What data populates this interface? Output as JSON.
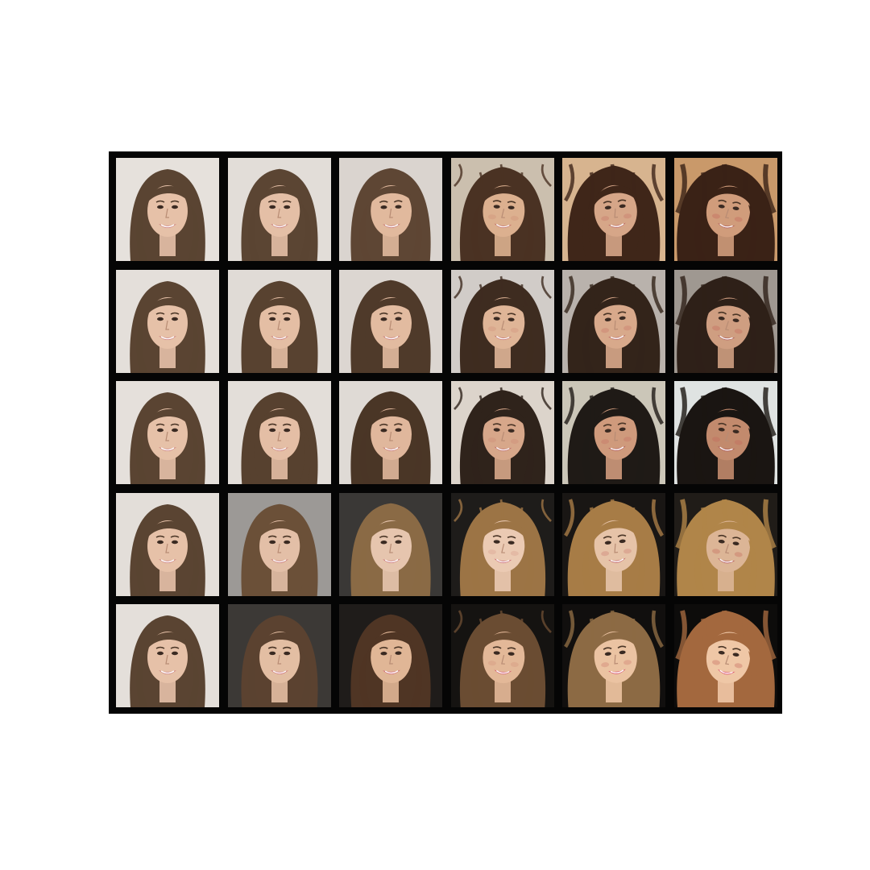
{
  "grid": {
    "rows": 5,
    "cols": 6,
    "frame_color": "#050505",
    "page_background": "#ffffff",
    "tiles": [
      [
        {
          "bg": "#e6e1dc",
          "hair": "#5a4432",
          "skin": "#e6c1a8",
          "lip": "#c9787a",
          "distortion": 0
        },
        {
          "bg": "#e2ddd8",
          "hair": "#5b4533",
          "skin": "#e4bfa6",
          "lip": "#c77678",
          "distortion": 0.05
        },
        {
          "bg": "#dad4cf",
          "hair": "#5e4634",
          "skin": "#e1b99d",
          "lip": "#c47072",
          "distortion": 0.2
        },
        {
          "bg": "#cbbfae",
          "hair": "#4a3223",
          "skin": "#dcb08f",
          "lip": "#c06a66",
          "distortion": 0.45
        },
        {
          "bg": "#d7b48f",
          "hair": "#3f2619",
          "skin": "#d6a688",
          "lip": "#b96464",
          "distortion": 0.75
        },
        {
          "bg": "#c9996a",
          "hair": "#3a2216",
          "skin": "#d09c7b",
          "lip": "#b05e5c",
          "distortion": 1
        }
      ],
      [
        {
          "bg": "#e4dfda",
          "hair": "#5a4432",
          "skin": "#e6c1a8",
          "lip": "#c9787a",
          "distortion": 0
        },
        {
          "bg": "#e0dbd6",
          "hair": "#584230",
          "skin": "#e4bea4",
          "lip": "#c77678",
          "distortion": 0.05
        },
        {
          "bg": "#dcd6d1",
          "hair": "#4f3a2a",
          "skin": "#e2bba0",
          "lip": "#c47274",
          "distortion": 0.2
        },
        {
          "bg": "#d1ccc8",
          "hair": "#3e2c20",
          "skin": "#dfb597",
          "lip": "#c06c6c",
          "distortion": 0.45
        },
        {
          "bg": "#b9b2ac",
          "hair": "#33241a",
          "skin": "#d8a98b",
          "lip": "#b86666",
          "distortion": 0.75
        },
        {
          "bg": "#9f9891",
          "hair": "#2e2018",
          "skin": "#cf9e81",
          "lip": "#ad5e5e",
          "distortion": 1
        }
      ],
      [
        {
          "bg": "#e5e0db",
          "hair": "#5a4432",
          "skin": "#e6c1a8",
          "lip": "#c9787a",
          "distortion": 0
        },
        {
          "bg": "#e3ded9",
          "hair": "#57412f",
          "skin": "#e4bea5",
          "lip": "#c77678",
          "distortion": 0.05
        },
        {
          "bg": "#dfdad5",
          "hair": "#4a3626",
          "skin": "#e0b79c",
          "lip": "#c47072",
          "distortion": 0.2
        },
        {
          "bg": "#dcd4cb",
          "hair": "#2f231b",
          "skin": "#d7a78a",
          "lip": "#bc6668",
          "distortion": 0.45
        },
        {
          "bg": "#cbc6b8",
          "hair": "#1f1a16",
          "skin": "#cf9a7c",
          "lip": "#b25c5e",
          "distortion": 0.75
        },
        {
          "bg": "#dfe3e2",
          "hair": "#1a1512",
          "skin": "#c28a6d",
          "lip": "#a95556",
          "distortion": 1
        }
      ],
      [
        {
          "bg": "#e3ded9",
          "hair": "#5a4432",
          "skin": "#e6c1a8",
          "lip": "#c9787a",
          "distortion": 0
        },
        {
          "bg": "#9c9996",
          "hair": "#6b5038",
          "skin": "#e3bfa7",
          "lip": "#c87577",
          "distortion": 0.05
        },
        {
          "bg": "#3a3836",
          "hair": "#8a6a45",
          "skin": "#e6c5ae",
          "lip": "#c86e74",
          "distortion": 0.2
        },
        {
          "bg": "#1e1c1a",
          "hair": "#9c7445",
          "skin": "#ebcab3",
          "lip": "#c6606c",
          "distortion": 0.45
        },
        {
          "bg": "#191614",
          "hair": "#a77c46",
          "skin": "#e6c3a8",
          "lip": "#bf5e66",
          "distortion": 0.75
        },
        {
          "bg": "#201c18",
          "hair": "#b08549",
          "skin": "#dcb596",
          "lip": "#b65a60",
          "distortion": 1
        }
      ],
      [
        {
          "bg": "#e4dfda",
          "hair": "#5a4432",
          "skin": "#e6c1a8",
          "lip": "#c9787a",
          "distortion": 0
        },
        {
          "bg": "#3c3936",
          "hair": "#5b4230",
          "skin": "#e3bea3",
          "lip": "#cc6f7a",
          "distortion": 0.05
        },
        {
          "bg": "#1f1c1a",
          "hair": "#4f3524",
          "skin": "#e0b696",
          "lip": "#cf5f74",
          "distortion": 0.2
        },
        {
          "bg": "#151311",
          "hair": "#6a4c32",
          "skin": "#e3b898",
          "lip": "#d2566e",
          "distortion": 0.45
        },
        {
          "bg": "#110f0e",
          "hair": "#8c6a44",
          "skin": "#ebc3a2",
          "lip": "#d64f6c",
          "distortion": 0.75
        },
        {
          "bg": "#0d0c0b",
          "hair": "#a3683e",
          "skin": "#efc7a6",
          "lip": "#da4a6a",
          "distortion": 1
        }
      ]
    ]
  }
}
